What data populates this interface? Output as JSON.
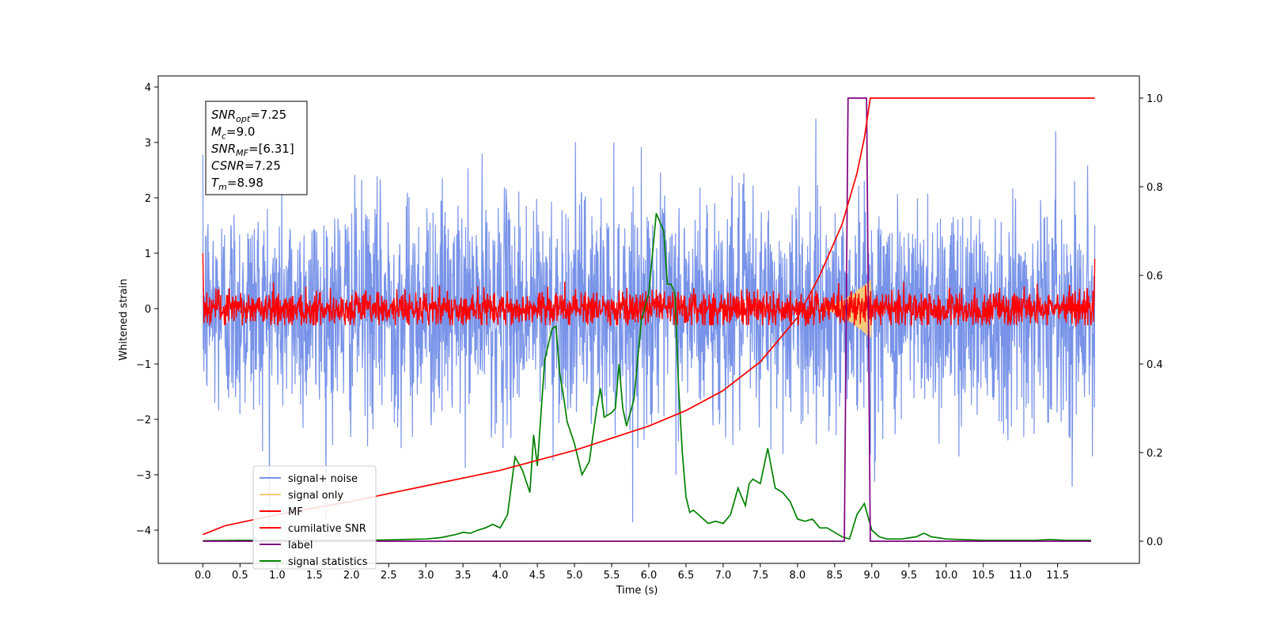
{
  "chart_data": {
    "type": "line",
    "title": "",
    "xlabel": "Time (s)",
    "ylabel": "Whitened strain",
    "xlim": [
      -0.6,
      12.6
    ],
    "ylim": [
      -4.6,
      4.2
    ],
    "y2lim": [
      -0.05,
      1.05
    ],
    "grid": false,
    "legend_position": "lower-left",
    "x_ticks": [
      "0.0",
      "0.5",
      "1.0",
      "1.5",
      "2.0",
      "2.5",
      "3.0",
      "3.5",
      "4.0",
      "4.5",
      "5.0",
      "5.5",
      "6.0",
      "6.5",
      "7.0",
      "7.5",
      "8.0",
      "8.5",
      "9.0",
      "9.5",
      "10.0",
      "10.5",
      "11.0",
      "11.5"
    ],
    "y_ticks": [
      "4",
      "3",
      "2",
      "1",
      "0",
      "−1",
      "−2",
      "−3",
      "−4"
    ],
    "y2_ticks": [
      "1.0",
      "0.8",
      "0.6",
      "0.4",
      "0.2",
      "0.0"
    ],
    "annotation": {
      "lines": [
        {
          "var": "SNR",
          "sub": "opt",
          "value": "=7.25"
        },
        {
          "var": "M",
          "sub": "c",
          "value": "=9.0"
        },
        {
          "var": "SNR",
          "sub": "MF",
          "value": "=[6.31]"
        },
        {
          "var": "CSNR",
          "sub": "",
          "value": "=7.25"
        },
        {
          "var": "T",
          "sub": "m",
          "value": "=8.98"
        }
      ]
    },
    "series": [
      {
        "name": "signal+ noise",
        "color": "#7893e8",
        "axis": "left",
        "style": "noise",
        "x_range": [
          0.0,
          12.0
        ],
        "amplitude_typical": 1.0,
        "amplitude_peak": 3.8
      },
      {
        "name": "signal only",
        "color": "#f5c97a",
        "axis": "left",
        "style": "chirp",
        "x_range": [
          8.3,
          9.0
        ],
        "peak_amplitude": 0.55
      },
      {
        "name": "MF",
        "color": "#ff0000",
        "axis": "left",
        "style": "noise",
        "x_range": [
          0.0,
          12.0
        ],
        "amplitude_typical": 0.2,
        "amplitude_peak": 0.55
      },
      {
        "name": "cumilative SNR",
        "color": "#ff0000",
        "axis": "right",
        "x": [
          0.0,
          0.3,
          1.0,
          2.0,
          3.0,
          4.0,
          5.0,
          6.0,
          6.5,
          7.0,
          7.5,
          8.0,
          8.3,
          8.6,
          8.8,
          8.9,
          8.98,
          12.0
        ],
        "y": [
          0.015,
          0.035,
          0.06,
          0.09,
          0.125,
          0.16,
          0.205,
          0.26,
          0.295,
          0.34,
          0.405,
          0.505,
          0.6,
          0.715,
          0.83,
          0.91,
          1.0,
          1.0
        ]
      },
      {
        "name": "label",
        "color": "#800080",
        "axis": "right",
        "x": [
          0.0,
          8.63,
          8.68,
          8.93,
          8.98,
          11.95
        ],
        "y": [
          0.0,
          0.0,
          1.0,
          1.0,
          0.0,
          0.0
        ]
      },
      {
        "name": "signal statistics",
        "color": "#008000",
        "axis": "right",
        "x": [
          0.0,
          0.5,
          1.0,
          1.5,
          2.0,
          2.5,
          3.0,
          3.2,
          3.4,
          3.5,
          3.6,
          3.7,
          3.8,
          3.9,
          4.0,
          4.1,
          4.2,
          4.3,
          4.4,
          4.45,
          4.5,
          4.6,
          4.7,
          4.75,
          4.8,
          4.85,
          4.9,
          5.0,
          5.1,
          5.2,
          5.3,
          5.35,
          5.4,
          5.5,
          5.55,
          5.6,
          5.65,
          5.7,
          5.8,
          5.9,
          6.0,
          6.1,
          6.2,
          6.25,
          6.3,
          6.35,
          6.4,
          6.45,
          6.5,
          6.55,
          6.6,
          6.7,
          6.8,
          6.9,
          7.0,
          7.1,
          7.2,
          7.3,
          7.35,
          7.4,
          7.5,
          7.6,
          7.7,
          7.75,
          7.8,
          7.9,
          8.0,
          8.1,
          8.2,
          8.3,
          8.4,
          8.5,
          8.6,
          8.7,
          8.8,
          8.9,
          9.0,
          9.1,
          9.2,
          9.4,
          9.6,
          9.7,
          9.8,
          10.0,
          10.5,
          11.0,
          11.2,
          11.4,
          11.6,
          11.95
        ],
        "y": [
          0.001,
          0.002,
          0.002,
          0.002,
          0.002,
          0.003,
          0.005,
          0.008,
          0.015,
          0.02,
          0.018,
          0.025,
          0.03,
          0.038,
          0.03,
          0.06,
          0.19,
          0.16,
          0.11,
          0.24,
          0.17,
          0.41,
          0.48,
          0.485,
          0.38,
          0.33,
          0.27,
          0.22,
          0.15,
          0.18,
          0.3,
          0.345,
          0.28,
          0.29,
          0.3,
          0.4,
          0.3,
          0.26,
          0.32,
          0.5,
          0.56,
          0.74,
          0.7,
          0.58,
          0.58,
          0.56,
          0.35,
          0.2,
          0.1,
          0.065,
          0.07,
          0.055,
          0.04,
          0.045,
          0.04,
          0.06,
          0.12,
          0.08,
          0.13,
          0.14,
          0.13,
          0.21,
          0.12,
          0.115,
          0.11,
          0.09,
          0.05,
          0.045,
          0.05,
          0.03,
          0.03,
          0.02,
          0.01,
          0.005,
          0.06,
          0.085,
          0.025,
          0.01,
          0.005,
          0.005,
          0.01,
          0.018,
          0.01,
          0.005,
          0.002,
          0.002,
          0.002,
          0.004,
          0.002,
          0.002
        ]
      }
    ]
  }
}
